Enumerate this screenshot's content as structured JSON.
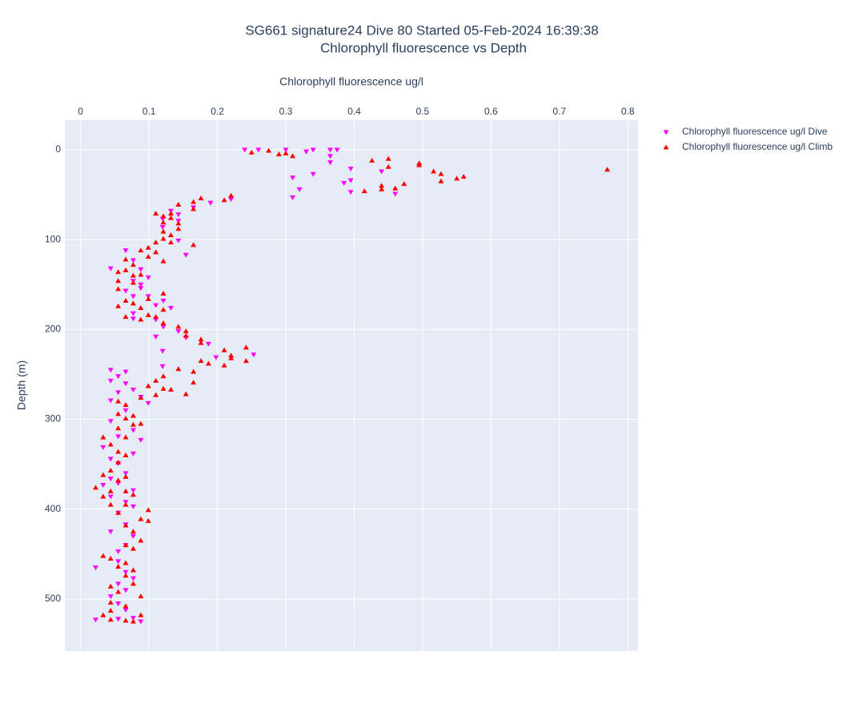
{
  "chart_data": {
    "type": "scatter",
    "title": "SG661 signature24 Dive 80 Started 05-Feb-2024 16:39:38",
    "subtitle": "Chlorophyll fluorescence vs Depth",
    "x_label": "Chlorophyll fluorescence ug/l",
    "y_label": "Depth (m)",
    "xlim": [
      -0.023,
      0.815
    ],
    "xticks": [
      0,
      0.1,
      0.2,
      0.3,
      0.4,
      0.5,
      0.6,
      0.7,
      0.8
    ],
    "ylim": [
      -33,
      558
    ],
    "yticks": [
      0,
      100,
      200,
      300,
      400,
      500
    ],
    "y_reversed": true,
    "x_axis_side": "top",
    "grid": true,
    "legend": "top-right",
    "series": [
      {
        "name": "Chlorophyll fluorescence ug/l Dive",
        "color": "#ff00ff",
        "symbol": "triangle-down",
        "x": [
          0.24,
          0.26,
          0.3,
          0.34,
          0.365,
          0.375,
          0.33,
          0.365,
          0.365,
          0.395,
          0.44,
          0.34,
          0.31,
          0.395,
          0.385,
          0.32,
          0.395,
          0.46,
          0.31,
          0.22,
          0.19,
          0.165,
          0.132,
          0.143,
          0.12,
          0.143,
          0.12,
          0.143,
          0.154,
          0.066,
          0.077,
          0.044,
          0.088,
          0.099,
          0.077,
          0.088,
          0.088,
          0.066,
          0.077,
          0.099,
          0.121,
          0.11,
          0.132,
          0.077,
          0.077,
          0.11,
          0.121,
          0.143,
          0.154,
          0.11,
          0.187,
          0.12,
          0.253,
          0.198,
          0.12,
          0.044,
          0.066,
          0.055,
          0.044,
          0.066,
          0.077,
          0.055,
          0.088,
          0.044,
          0.099,
          0.066,
          0.044,
          0.077,
          0.055,
          0.088,
          0.033,
          0.077,
          0.044,
          0.055,
          0.066,
          0.044,
          0.055,
          0.033,
          0.077,
          0.044,
          0.066,
          0.077,
          0.055,
          0.066,
          0.044,
          0.077,
          0.066,
          0.055,
          0.022,
          0.055,
          0.066,
          0.077,
          0.055,
          0.066,
          0.044,
          0.055,
          0.066,
          0.022,
          0.055,
          0.077,
          0.088
        ],
        "values": [
          0,
          0,
          0,
          0,
          0,
          0,
          2,
          7,
          14,
          21,
          24,
          27,
          31,
          34,
          37,
          44,
          47,
          49,
          53,
          55,
          59,
          64,
          68,
          72,
          77,
          79,
          86,
          101,
          117,
          112,
          123,
          132,
          133,
          142,
          146,
          150,
          154,
          157,
          163,
          163,
          168,
          173,
          176,
          182,
          188,
          189,
          197,
          202,
          209,
          208,
          216,
          224,
          228,
          231,
          241,
          245,
          247,
          252,
          257,
          260,
          267,
          270,
          275,
          279,
          282,
          290,
          302,
          312,
          319,
          323,
          331,
          338,
          344,
          349,
          360,
          366,
          371,
          373,
          379,
          386,
          392,
          397,
          404,
          417,
          425,
          430,
          440,
          447,
          465,
          458,
          470,
          477,
          483,
          490,
          497,
          505,
          512,
          523,
          522,
          521,
          525
        ]
      },
      {
        "name": "Chlorophyll fluorescence ug/l Climb",
        "color": "#ff0000",
        "symbol": "triangle-up",
        "x": [
          0.25,
          0.275,
          0.29,
          0.3,
          0.31,
          0.45,
          0.426,
          0.45,
          0.495,
          0.495,
          0.516,
          0.527,
          0.56,
          0.55,
          0.527,
          0.473,
          0.44,
          0.46,
          0.44,
          0.415,
          0.77,
          0.22,
          0.176,
          0.165,
          0.21,
          0.143,
          0.165,
          0.132,
          0.11,
          0.121,
          0.132,
          0.121,
          0.143,
          0.143,
          0.121,
          0.132,
          0.121,
          0.11,
          0.132,
          0.165,
          0.099,
          0.088,
          0.11,
          0.099,
          0.121,
          0.066,
          0.077,
          0.055,
          0.066,
          0.077,
          0.088,
          0.055,
          0.077,
          0.055,
          0.121,
          0.099,
          0.066,
          0.077,
          0.055,
          0.088,
          0.121,
          0.099,
          0.11,
          0.066,
          0.088,
          0.121,
          0.143,
          0.154,
          0.154,
          0.176,
          0.176,
          0.21,
          0.22,
          0.242,
          0.242,
          0.22,
          0.176,
          0.187,
          0.21,
          0.143,
          0.165,
          0.121,
          0.11,
          0.165,
          0.099,
          0.121,
          0.132,
          0.11,
          0.154,
          0.088,
          0.055,
          0.066,
          0.055,
          0.077,
          0.066,
          0.088,
          0.077,
          0.055,
          0.033,
          0.066,
          0.044,
          0.055,
          0.066,
          0.055,
          0.044,
          0.033,
          0.066,
          0.055,
          0.022,
          0.044,
          0.066,
          0.077,
          0.033,
          0.044,
          0.066,
          0.099,
          0.055,
          0.099,
          0.088,
          0.066,
          0.077,
          0.088,
          0.066,
          0.077,
          0.033,
          0.044,
          0.066,
          0.055,
          0.077,
          0.066,
          0.077,
          0.044,
          0.055,
          0.088,
          0.044,
          0.066,
          0.044,
          0.033,
          0.088,
          0.044,
          0.066,
          0.077
        ],
        "values": [
          3,
          1,
          5,
          4,
          7,
          10,
          12,
          19,
          15,
          17,
          24,
          27,
          30,
          32,
          35,
          38,
          40,
          43,
          44,
          46,
          22,
          51,
          54,
          58,
          56,
          61,
          66,
          71,
          71,
          74,
          76,
          81,
          82,
          88,
          91,
          95,
          99,
          103,
          103,
          106,
          109,
          112,
          114,
          119,
          124,
          122,
          128,
          136,
          134,
          140,
          139,
          146,
          148,
          155,
          160,
          166,
          168,
          171,
          174,
          176,
          178,
          184,
          186,
          186,
          189,
          193,
          197,
          202,
          207,
          211,
          215,
          223,
          229,
          220,
          235,
          232,
          235,
          238,
          240,
          244,
          247,
          252,
          257,
          259,
          263,
          266,
          267,
          273,
          272,
          276,
          280,
          284,
          294,
          296,
          299,
          305,
          306,
          310,
          320,
          320,
          328,
          336,
          340,
          348,
          357,
          362,
          364,
          368,
          376,
          380,
          380,
          384,
          386,
          395,
          395,
          401,
          404,
          413,
          411,
          418,
          425,
          435,
          440,
          444,
          452,
          455,
          460,
          464,
          468,
          474,
          483,
          486,
          492,
          497,
          504,
          508,
          513,
          518,
          518,
          523,
          524,
          525
        ]
      }
    ]
  }
}
